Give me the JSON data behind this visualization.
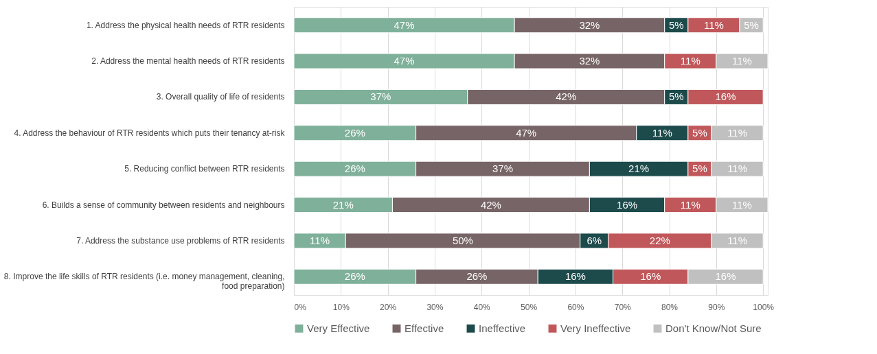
{
  "chart_data": {
    "type": "bar",
    "orientation": "horizontal",
    "stacked": true,
    "categories": [
      "1. Address the physical health needs of RTR residents",
      "2. Address the mental health needs of RTR residents",
      "3. Overall quality of life of residents",
      "4. Address the behaviour of RTR residents which puts their tenancy at-risk",
      "5. Reducing conflict between RTR residents",
      "6. Builds a sense of community between residents and neighbours",
      "7. Address the substance use problems of RTR residents",
      "8. Improve the life skills of RTR residents (i.e. money management, cleaning, food preparation)"
    ],
    "series": [
      {
        "name": "Very Effective",
        "color": "#7fb09a",
        "values": [
          47,
          47,
          37,
          26,
          26,
          21,
          11,
          26
        ],
        "value_labels": [
          "47%",
          "47%",
          "37%",
          "26%",
          "26%",
          "21%",
          "11%",
          "26%"
        ]
      },
      {
        "name": "Effective",
        "color": "#766466",
        "values": [
          32,
          32,
          42,
          47,
          37,
          42,
          50,
          26
        ],
        "value_labels": [
          "32%",
          "32%",
          "42%",
          "47%",
          "37%",
          "42%",
          "50%",
          "26%"
        ]
      },
      {
        "name": "Ineffective",
        "color": "#1d4a4b",
        "values": [
          5,
          null,
          5,
          11,
          21,
          16,
          6,
          16
        ],
        "value_labels": [
          "5%",
          null,
          "5%",
          "11%",
          "21%",
          "16%",
          "6%",
          "16%"
        ]
      },
      {
        "name": "Very Ineffective",
        "color": "#c0575a",
        "values": [
          11,
          11,
          16,
          5,
          5,
          11,
          22,
          16
        ],
        "value_labels": [
          "11%",
          "11%",
          "16%",
          "5%",
          "5%",
          "11%",
          "22%",
          "16%"
        ]
      },
      {
        "name": "Don't Know/Not Sure",
        "color": "#c0c0c0",
        "values": [
          5,
          11,
          null,
          11,
          11,
          11,
          11,
          16
        ],
        "value_labels": [
          "5%",
          "11%",
          null,
          "11%",
          "11%",
          "11%",
          "11%",
          "16%"
        ]
      }
    ],
    "xlim": [
      0,
      101
    ],
    "xticks": [
      {
        "value": 0,
        "label": "0%"
      },
      {
        "value": 10,
        "label": "10%"
      },
      {
        "value": 20,
        "label": "20%"
      },
      {
        "value": 30,
        "label": "30%"
      },
      {
        "value": 40,
        "label": "40%"
      },
      {
        "value": 50,
        "label": "50%"
      },
      {
        "value": 60,
        "label": "60%"
      },
      {
        "value": 70,
        "label": "70%"
      },
      {
        "value": 80,
        "label": "80%"
      },
      {
        "value": 90,
        "label": "90%"
      },
      {
        "value": 100,
        "label": "100%"
      }
    ],
    "grid": "x",
    "legend": "bottom"
  }
}
